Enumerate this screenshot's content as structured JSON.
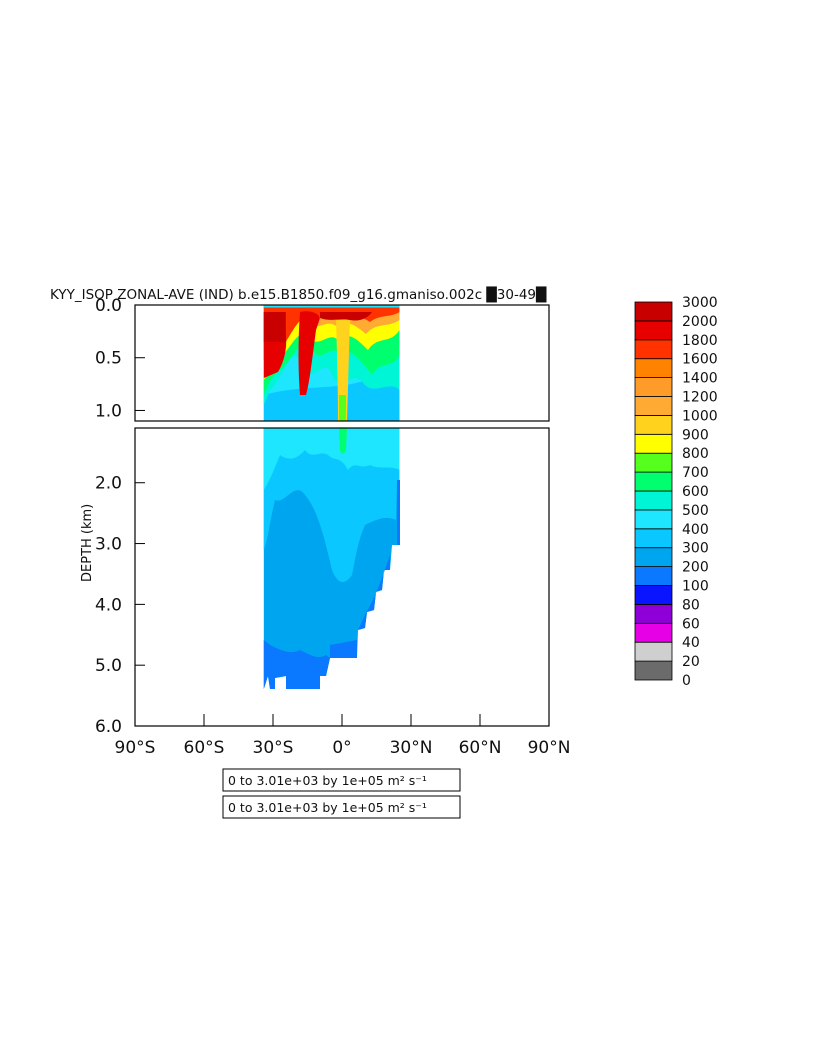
{
  "chart_data": {
    "type": "heatmap",
    "title": "KYY_ISOP ZONAL-AVE (IND) b.e15.B1850.f09_g16.gmaniso.002c █30-49█",
    "ylabel": "DEPTH (km)",
    "xlabel": "",
    "x_ticks": [
      "90°S",
      "60°S",
      "30°S",
      "0°",
      "30°N",
      "60°N",
      "90°N"
    ],
    "x_tick_values": [
      -90,
      -60,
      -30,
      0,
      30,
      60,
      90
    ],
    "xlim": [
      -90,
      90
    ],
    "upper_panel": {
      "ylim": [
        0.0,
        1.1
      ],
      "y_ticks": [
        "0.0",
        "0.5",
        "1.0"
      ],
      "y_tick_values": [
        0.0,
        0.5,
        1.0
      ]
    },
    "lower_panel": {
      "ylim": [
        1.1,
        6.0
      ],
      "y_ticks": [
        "2.0",
        "3.0",
        "4.0",
        "5.0",
        "6.0"
      ],
      "y_tick_values": [
        2.0,
        3.0,
        4.0,
        5.0,
        6.0
      ]
    },
    "data_extent": {
      "lat_min": -34,
      "lat_max": 25,
      "max_depth_km": 5.4
    },
    "colorbar": {
      "levels": [
        "0",
        "20",
        "40",
        "60",
        "80",
        "100",
        "200",
        "300",
        "400",
        "500",
        "600",
        "700",
        "800",
        "900",
        "1000",
        "1200",
        "1400",
        "1600",
        "1800",
        "2000",
        "3000"
      ],
      "colors": [
        "#6b6b6b",
        "#cfcfcf",
        "#e600e6",
        "#8f00d9",
        "#0a14ff",
        "#0a78ff",
        "#00a5f0",
        "#0ac8ff",
        "#1ee6ff",
        "#00f5d7",
        "#00ff6e",
        "#55ff1e",
        "#ffff00",
        "#ffd21e",
        "#ffaa32",
        "#ff9b28",
        "#ff8200",
        "#ff3200",
        "#e60000",
        "#c80000"
      ]
    },
    "annotations": [
      "0 to 3.01e+03 by 1e+05 m² s⁻¹",
      "0 to 3.01e+03 by 1e+05 m² s⁻¹"
    ]
  }
}
